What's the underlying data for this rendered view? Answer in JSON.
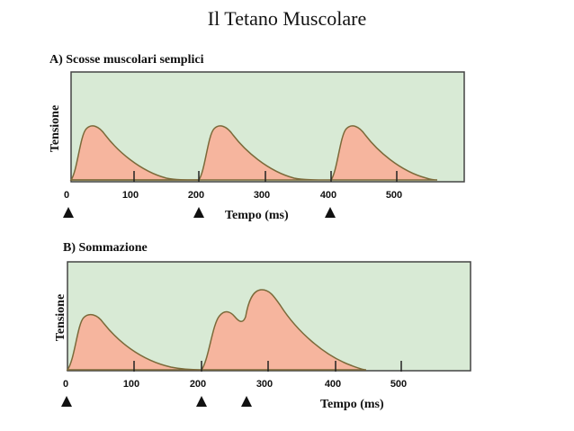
{
  "title": "Il Tetano Muscolare",
  "colors": {
    "background": "#d8ead5",
    "frame": "#444444",
    "fill": "#f6b59e",
    "stroke": "#7b6a3a"
  },
  "panels": [
    {
      "title": "A) Scosse muscolari semplici",
      "ylabel": "Tensione",
      "xlabel": "Tempo (ms)",
      "ticks": [
        "0",
        "100",
        "200",
        "300",
        "400",
        "500"
      ],
      "stimuli_ms": [
        0,
        200,
        400
      ]
    },
    {
      "title": "B) Sommazione",
      "ylabel": "Tensione",
      "xlabel": "Tempo (ms)",
      "ticks": [
        "0",
        "100",
        "200",
        "300",
        "400",
        "500"
      ],
      "stimuli_ms": [
        0,
        200,
        270
      ]
    }
  ]
}
